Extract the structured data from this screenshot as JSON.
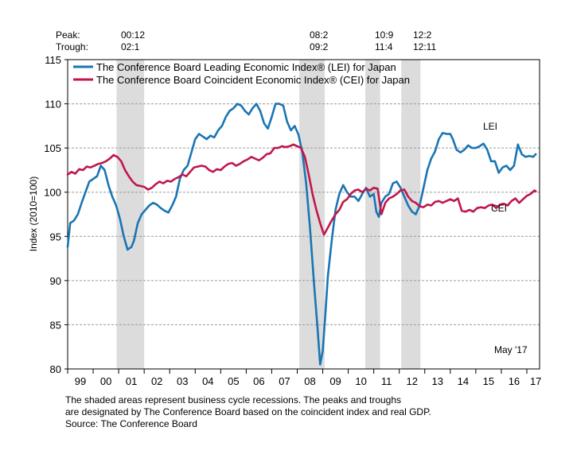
{
  "cycle_table": {
    "peak_label": "Peak:",
    "trough_label": "Trough:",
    "peaks": [
      "00:12",
      "08:2",
      "10:9",
      "12:2"
    ],
    "troughs": [
      "02:1",
      "09:2",
      "11:4",
      "12:11"
    ]
  },
  "footnote": {
    "line1": "The shaded areas represent business cycle recessions. The peaks and troughs",
    "line2": "are designated by The Conference Board based on the coincident index and real GDP.",
    "line3": "Source: The Conference Board"
  },
  "chart_data": {
    "type": "line",
    "title": "",
    "xlabel": "",
    "ylabel": "Index (2010=100)",
    "xlim": [
      1999.0,
      2017.5
    ],
    "ylim": [
      80,
      115
    ],
    "yticks": [
      80,
      85,
      90,
      95,
      100,
      105,
      110,
      115
    ],
    "xtick_labels": [
      "99",
      "00",
      "01",
      "02",
      "03",
      "04",
      "05",
      "06",
      "07",
      "08",
      "09",
      "10",
      "11",
      "12",
      "13",
      "14",
      "15",
      "16",
      "17"
    ],
    "grid": "horizontal dashed",
    "legend_position": "top-left",
    "date_stamp": "May '17",
    "recessions": [
      {
        "peak": "00:12",
        "trough": "02:1",
        "start": 2000.92,
        "end": 2002.0
      },
      {
        "peak": "08:2",
        "trough": "09:2",
        "start": 2008.08,
        "end": 2009.08
      },
      {
        "peak": "10:9",
        "trough": "11:4",
        "start": 2010.67,
        "end": 2011.25
      },
      {
        "peak": "12:2",
        "trough": "12:11",
        "start": 2012.08,
        "end": 2012.83
      }
    ],
    "series": [
      {
        "name": "The Conference Board Leading Economic Index® (LEI) for Japan",
        "label": "LEI",
        "color": "#1a75b4",
        "x": [
          1999.0,
          1999.1,
          1999.25,
          1999.4,
          1999.55,
          1999.7,
          1999.85,
          2000.0,
          2000.15,
          2000.3,
          2000.45,
          2000.6,
          2000.75,
          2000.9,
          2001.05,
          2001.2,
          2001.35,
          2001.5,
          2001.6,
          2001.75,
          2001.9,
          2002.05,
          2002.2,
          2002.35,
          2002.5,
          2002.65,
          2002.8,
          2002.95,
          2003.1,
          2003.25,
          2003.4,
          2003.55,
          2003.7,
          2003.85,
          2004.0,
          2004.15,
          2004.3,
          2004.45,
          2004.6,
          2004.75,
          2004.9,
          2005.05,
          2005.2,
          2005.35,
          2005.5,
          2005.65,
          2005.8,
          2005.95,
          2006.1,
          2006.25,
          2006.4,
          2006.55,
          2006.7,
          2006.85,
          2007.0,
          2007.15,
          2007.3,
          2007.45,
          2007.6,
          2007.75,
          2007.9,
          2008.05,
          2008.2,
          2008.35,
          2008.5,
          2008.65,
          2008.8,
          2008.9,
          2009.0,
          2009.1,
          2009.2,
          2009.35,
          2009.5,
          2009.65,
          2009.8,
          2009.95,
          2010.1,
          2010.25,
          2010.4,
          2010.55,
          2010.7,
          2010.85,
          2011.0,
          2011.1,
          2011.2,
          2011.3,
          2011.45,
          2011.6,
          2011.75,
          2011.9,
          2012.05,
          2012.2,
          2012.35,
          2012.5,
          2012.65,
          2012.8,
          2012.95,
          2013.1,
          2013.25,
          2013.4,
          2013.55,
          2013.7,
          2013.85,
          2014.0,
          2014.1,
          2014.25,
          2014.4,
          2014.55,
          2014.7,
          2014.85,
          2015.0,
          2015.15,
          2015.3,
          2015.45,
          2015.6,
          2015.75,
          2015.9,
          2016.05,
          2016.2,
          2016.35,
          2016.5,
          2016.65,
          2016.8,
          2016.95,
          2017.1,
          2017.25,
          2017.35
        ],
        "y": [
          93.8,
          96.5,
          96.8,
          97.5,
          98.8,
          100.0,
          101.2,
          101.5,
          101.8,
          103.0,
          102.5,
          100.8,
          99.5,
          98.5,
          97.0,
          95.0,
          93.5,
          93.8,
          94.5,
          96.5,
          97.5,
          98.0,
          98.5,
          98.8,
          98.6,
          98.2,
          97.9,
          97.7,
          98.5,
          99.5,
          101.5,
          102.5,
          103.0,
          104.5,
          106.0,
          106.6,
          106.3,
          106.0,
          106.4,
          106.2,
          107.0,
          107.5,
          108.5,
          109.2,
          109.5,
          110.0,
          109.8,
          109.2,
          108.8,
          109.5,
          110.0,
          109.2,
          107.8,
          107.2,
          108.5,
          110.0,
          110.0,
          109.8,
          108.0,
          107.0,
          107.5,
          106.5,
          104.5,
          101.0,
          96.0,
          90.0,
          84.5,
          80.5,
          82.0,
          86.0,
          90.5,
          94.5,
          98.0,
          99.8,
          100.8,
          100.0,
          99.5,
          99.5,
          99.0,
          99.8,
          100.5,
          99.5,
          99.8,
          97.8,
          97.2,
          98.8,
          99.5,
          99.8,
          101.0,
          101.2,
          100.5,
          99.5,
          98.5,
          97.8,
          97.5,
          98.5,
          100.5,
          102.5,
          103.8,
          104.6,
          106.0,
          106.7,
          106.6,
          106.6,
          106.0,
          104.8,
          104.5,
          104.8,
          105.3,
          105.0,
          105.0,
          105.2,
          105.5,
          104.8,
          103.5,
          103.5,
          102.2,
          102.8,
          103.0,
          102.5,
          103.0,
          105.4,
          104.3,
          104.0,
          104.1,
          104.0,
          104.3
        ]
      },
      {
        "name": "The Conference Board Coincident Economic Index® (CEI) for Japan",
        "label": "CEI",
        "color": "#c0174b",
        "x": [
          1999.0,
          1999.15,
          1999.3,
          1999.45,
          1999.6,
          1999.75,
          1999.9,
          2000.05,
          2000.2,
          2000.35,
          2000.5,
          2000.65,
          2000.8,
          2000.95,
          2001.1,
          2001.25,
          2001.4,
          2001.55,
          2001.7,
          2001.85,
          2002.0,
          2002.15,
          2002.3,
          2002.45,
          2002.6,
          2002.75,
          2002.9,
          2003.05,
          2003.2,
          2003.35,
          2003.5,
          2003.65,
          2003.8,
          2003.95,
          2004.1,
          2004.25,
          2004.4,
          2004.55,
          2004.7,
          2004.85,
          2005.0,
          2005.15,
          2005.3,
          2005.45,
          2005.6,
          2005.75,
          2005.9,
          2006.05,
          2006.2,
          2006.35,
          2006.5,
          2006.65,
          2006.8,
          2006.95,
          2007.1,
          2007.25,
          2007.4,
          2007.55,
          2007.7,
          2007.85,
          2008.0,
          2008.15,
          2008.3,
          2008.45,
          2008.6,
          2008.75,
          2008.9,
          2009.05,
          2009.2,
          2009.35,
          2009.5,
          2009.65,
          2009.8,
          2009.95,
          2010.1,
          2010.25,
          2010.4,
          2010.55,
          2010.7,
          2010.85,
          2011.0,
          2011.15,
          2011.3,
          2011.45,
          2011.6,
          2011.75,
          2011.9,
          2012.05,
          2012.2,
          2012.35,
          2012.5,
          2012.65,
          2012.8,
          2012.95,
          2013.1,
          2013.25,
          2013.4,
          2013.55,
          2013.7,
          2013.85,
          2014.0,
          2014.15,
          2014.3,
          2014.45,
          2014.6,
          2014.75,
          2014.9,
          2015.05,
          2015.2,
          2015.35,
          2015.5,
          2015.65,
          2015.8,
          2015.95,
          2016.1,
          2016.25,
          2016.4,
          2016.55,
          2016.7,
          2016.85,
          2017.0,
          2017.15,
          2017.3,
          2017.35
        ],
        "y": [
          102.0,
          102.3,
          102.1,
          102.6,
          102.5,
          102.9,
          102.8,
          103.0,
          103.2,
          103.3,
          103.5,
          103.8,
          104.2,
          104.0,
          103.5,
          102.5,
          101.8,
          101.2,
          100.8,
          100.7,
          100.6,
          100.3,
          100.5,
          100.9,
          101.2,
          101.0,
          101.3,
          101.2,
          101.5,
          101.7,
          102.0,
          101.8,
          102.3,
          102.8,
          102.9,
          103.0,
          102.9,
          102.5,
          102.3,
          102.6,
          102.5,
          102.9,
          103.2,
          103.3,
          103.0,
          103.2,
          103.5,
          103.7,
          104.0,
          103.8,
          103.6,
          103.9,
          104.3,
          104.4,
          105.0,
          105.0,
          105.2,
          105.1,
          105.2,
          105.4,
          105.2,
          105.0,
          104.0,
          102.0,
          99.8,
          98.0,
          96.5,
          95.2,
          96.0,
          96.8,
          97.5,
          98.0,
          98.9,
          99.2,
          99.8,
          100.2,
          100.3,
          100.0,
          100.4,
          100.2,
          100.5,
          100.4,
          97.5,
          98.8,
          99.3,
          99.5,
          99.8,
          100.2,
          100.3,
          99.5,
          99.0,
          98.8,
          98.4,
          98.3,
          98.6,
          98.5,
          98.9,
          99.0,
          98.8,
          99.0,
          99.2,
          99.0,
          99.3,
          97.9,
          97.8,
          98.0,
          97.8,
          98.2,
          98.3,
          98.2,
          98.5,
          98.6,
          98.2,
          98.6,
          98.7,
          98.5,
          99.0,
          99.3,
          98.8,
          99.2,
          99.6,
          99.8,
          100.2,
          100.1
        ]
      }
    ]
  }
}
